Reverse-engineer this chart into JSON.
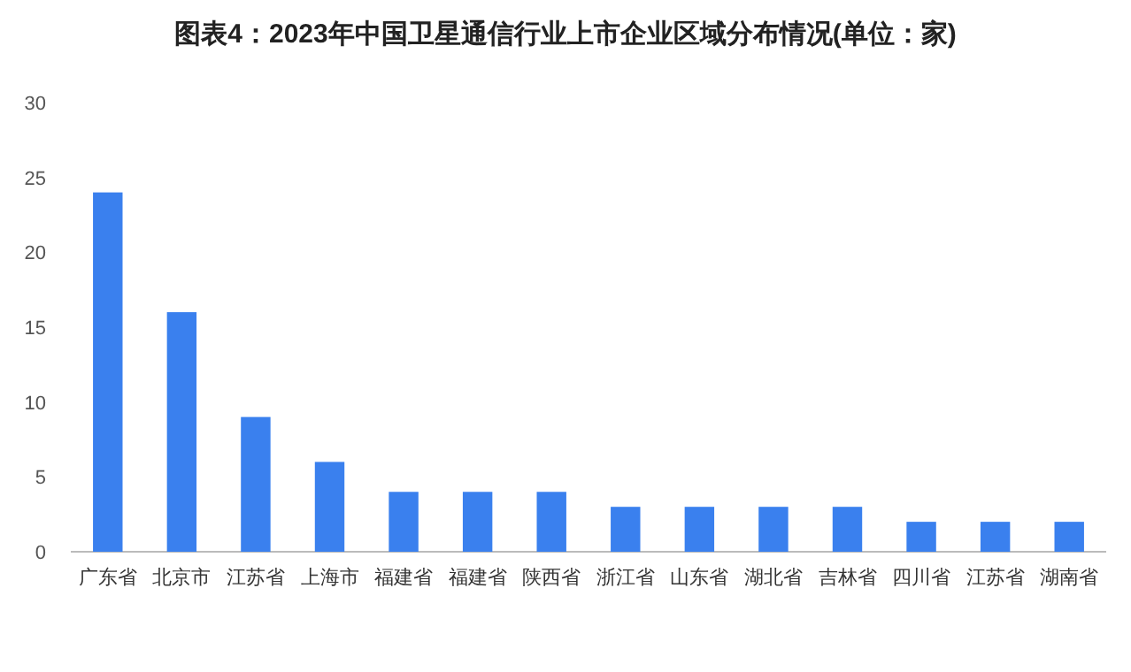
{
  "chart_data": {
    "type": "bar",
    "title": "图表4：2023年中国卫星通信行业上市企业区域分布情况(单位：家)",
    "categories": [
      "广东省",
      "北京市",
      "江苏省",
      "上海市",
      "福建省",
      "福建省",
      "陕西省",
      "浙江省",
      "山东省",
      "湖北省",
      "吉林省",
      "四川省",
      "江苏省",
      "湖南省"
    ],
    "values": [
      24,
      16,
      9,
      6,
      4,
      4,
      4,
      3,
      3,
      3,
      3,
      2,
      2,
      2
    ],
    "color": "#3a80ee",
    "ylim": [
      0,
      30
    ],
    "yticks": [
      0,
      5,
      10,
      15,
      20,
      25,
      30
    ]
  }
}
